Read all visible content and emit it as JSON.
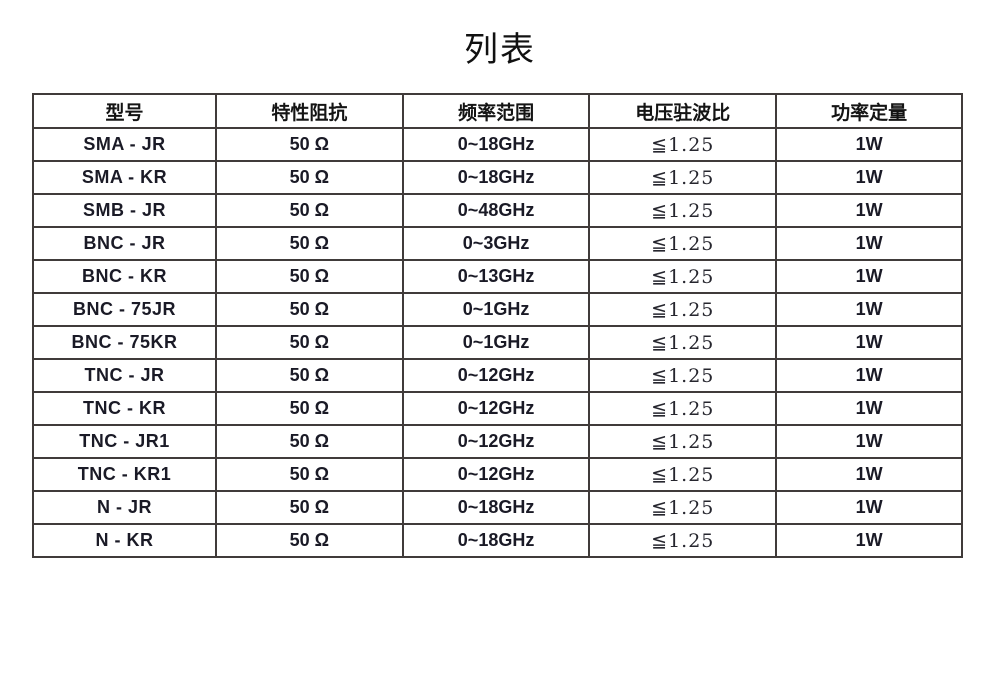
{
  "page": {
    "title": "列表",
    "background_color": "#ffffff",
    "border_color": "#403b3a",
    "text_color": "#1a1a26"
  },
  "table": {
    "columns": [
      "型号",
      "特性阻抗",
      "频率范围",
      "电压驻波比",
      "功率定量"
    ],
    "rows": [
      [
        "SMA - JR",
        "50 Ω",
        "0~18GHz",
        "≦1.25",
        "1W"
      ],
      [
        "SMA - KR",
        "50 Ω",
        "0~18GHz",
        "≦1.25",
        "1W"
      ],
      [
        "SMB - JR",
        "50 Ω",
        "0~48GHz",
        "≦1.25",
        "1W"
      ],
      [
        "BNC - JR",
        "50 Ω",
        "0~3GHz",
        "≦1.25",
        "1W"
      ],
      [
        "BNC - KR",
        "50 Ω",
        "0~13GHz",
        "≦1.25",
        "1W"
      ],
      [
        "BNC - 75JR",
        "50 Ω",
        "0~1GHz",
        "≦1.25",
        "1W"
      ],
      [
        "BNC - 75KR",
        "50 Ω",
        "0~1GHz",
        "≦1.25",
        "1W"
      ],
      [
        "TNC - JR",
        "50 Ω",
        "0~12GHz",
        "≦1.25",
        "1W"
      ],
      [
        "TNC - KR",
        "50 Ω",
        "0~12GHz",
        "≦1.25",
        "1W"
      ],
      [
        "TNC - JR1",
        "50 Ω",
        "0~12GHz",
        "≦1.25",
        "1W"
      ],
      [
        "TNC - KR1",
        "50 Ω",
        "0~12GHz",
        "≦1.25",
        "1W"
      ],
      [
        "N - JR",
        "50 Ω",
        "0~18GHz",
        "≦1.25",
        "1W"
      ],
      [
        "N - KR",
        "50 Ω",
        "0~18GHz",
        "≦1.25",
        "1W"
      ]
    ]
  }
}
